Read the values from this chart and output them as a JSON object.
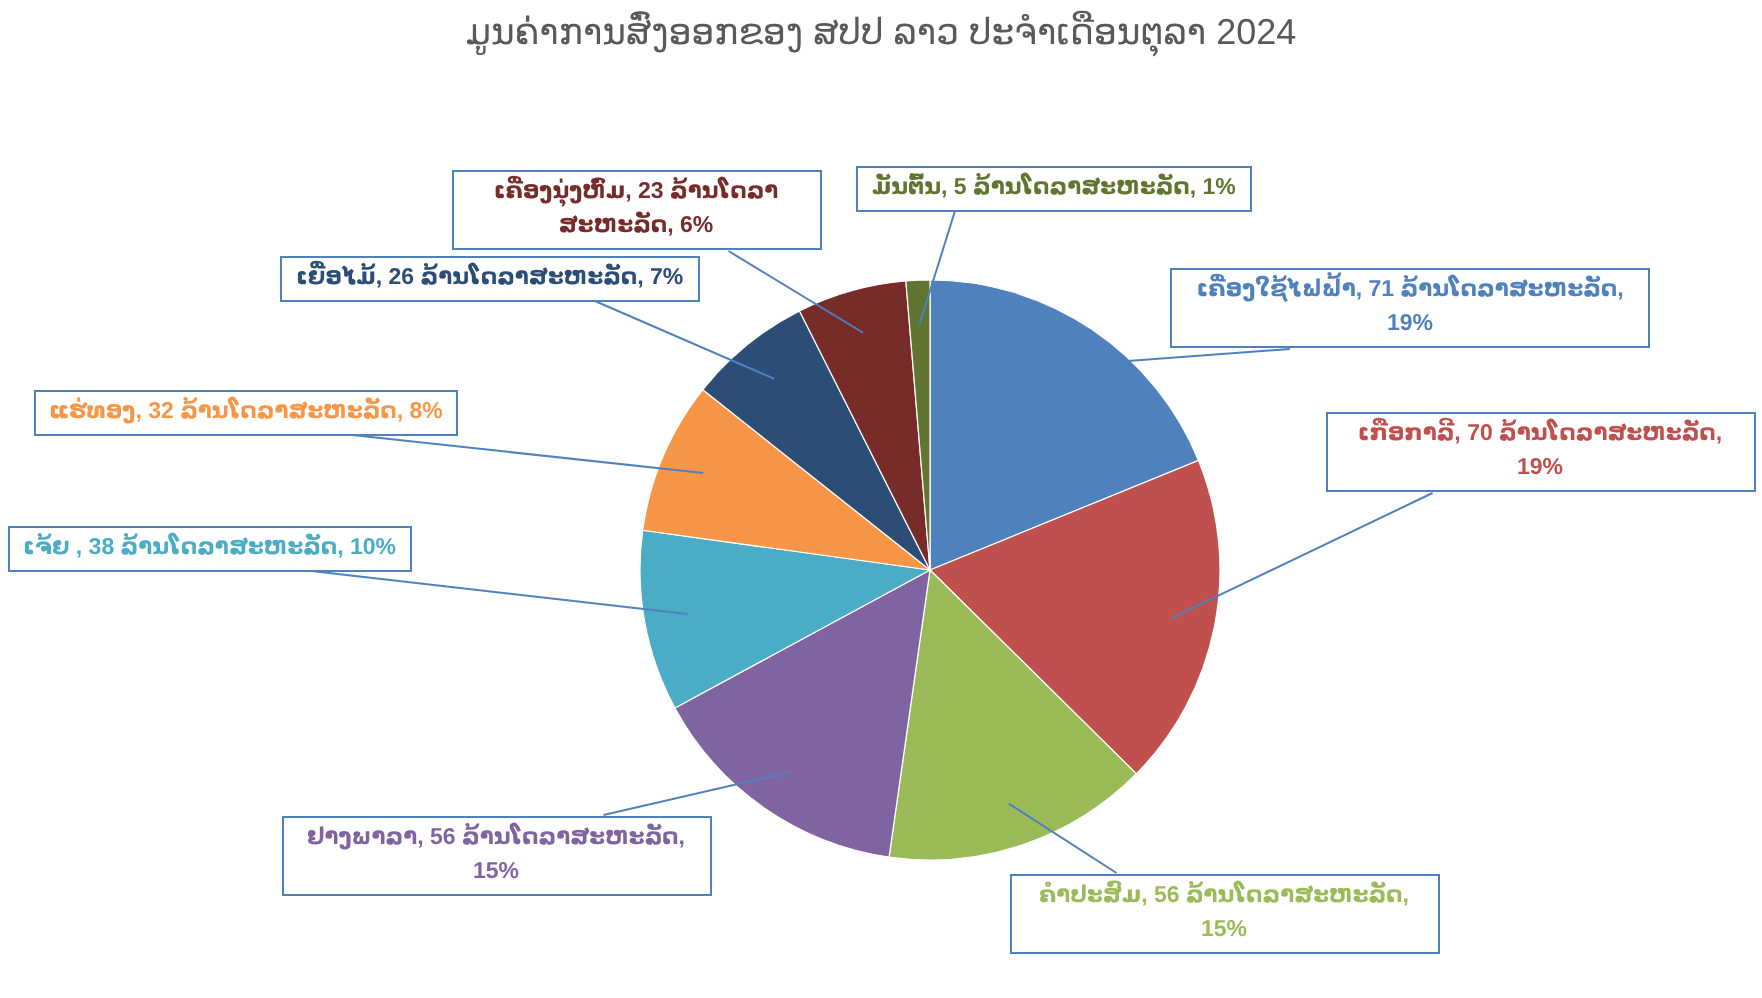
{
  "chart_data": {
    "type": "pie",
    "title": "ມູນຄ່າການສົ່ງອອກຂອງ ສປປ ລາວ ປະຈຳເດືອນຕຸລາ 2024",
    "categories": [
      "ເຄື່ອງໃຊ້ໄຟຟ້າ",
      "ເກືອກາລີ",
      "ຄຳປະສົມ",
      "ຢາງພາລາ",
      "ເຈ້ຍ ",
      "ແຮ່ທອງ",
      "ເຍື່ອໄມ້",
      "ເຄື່ອງນຸ່ງຫົ່ມ",
      "ມັນຕົ້ນ"
    ],
    "values": [
      71,
      70,
      56,
      56,
      38,
      32,
      26,
      23,
      5
    ],
    "colors": [
      "#4f81bd",
      "#c0504d",
      "#9bbb59",
      "#8064a2",
      "#4bacc6",
      "#f79646",
      "#2c4d75",
      "#772c2a",
      "#5f7530"
    ],
    "value_labels": [
      "71 ລ້ານໂດລາສະຫະລັດ, 19%",
      "70 ລ້ານໂດລາສະຫະລັດ, 19%",
      "56 ລ້ານໂດລາສະຫະລັດ, 15%",
      "56 ລ້ານໂດລາສະຫະລັດ, 15%",
      "38 ລ້ານໂດລາສະຫະລັດ, 10%",
      "32 ລ້ານໂດລາສະຫະລັດ, 8%",
      "26 ລ້ານໂດລາສະຫະລັດ, 7%",
      "23 ລ້ານໂດລາສະຫະລັດ, 6%",
      "5 ລ້ານໂດລາສະຫະລັດ, 1%"
    ]
  }
}
